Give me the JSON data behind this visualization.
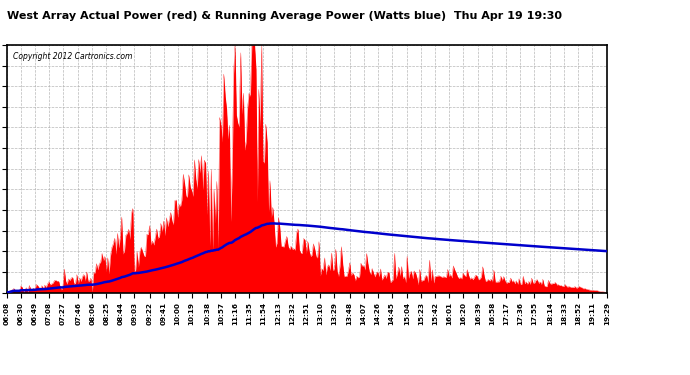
{
  "title": "West Array Actual Power (red) & Running Average Power (Watts blue)  Thu Apr 19 19:30",
  "copyright": "Copyright 2012 Cartronics.com",
  "ylim": [
    0.0,
    1879.0
  ],
  "yticks": [
    0.0,
    156.6,
    313.2,
    469.8,
    626.3,
    782.9,
    939.5,
    1096.1,
    1252.7,
    1409.3,
    1565.8,
    1722.4,
    1879.0
  ],
  "background_color": "#ffffff",
  "grid_color": "#b0b0b0",
  "red_color": "#ff0000",
  "blue_color": "#0000cc",
  "title_color": "#000000",
  "time_labels": [
    "06:08",
    "06:30",
    "06:49",
    "07:08",
    "07:27",
    "07:46",
    "08:06",
    "08:25",
    "08:44",
    "09:03",
    "09:22",
    "09:41",
    "10:00",
    "10:19",
    "10:38",
    "10:57",
    "11:16",
    "11:35",
    "11:54",
    "12:13",
    "12:32",
    "12:51",
    "13:10",
    "13:29",
    "13:48",
    "14:07",
    "14:26",
    "14:45",
    "15:04",
    "15:23",
    "15:42",
    "16:01",
    "16:20",
    "16:39",
    "16:58",
    "17:17",
    "17:36",
    "17:55",
    "18:14",
    "18:33",
    "18:52",
    "19:11",
    "19:29"
  ]
}
